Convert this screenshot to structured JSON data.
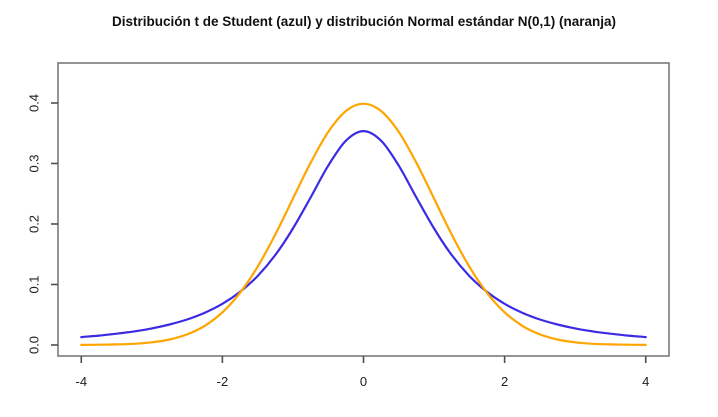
{
  "title": "Distribución t de Student (azul) y distribución Normal estándar N(0,1) (naranja)",
  "colors": {
    "t_curve": "#3c2be3",
    "normal_curve": "#ffa500",
    "plot_border": "#7a7a7a",
    "tick_mark": "#4f4f4f",
    "tick_label": "#1f1f1f",
    "background": "#ffffff"
  },
  "chart_data": {
    "type": "line",
    "title": "Distribución t de Student (azul) y distribución Normal estándar N(0,1) (naranja)",
    "xlabel": "",
    "ylabel": "",
    "grid": false,
    "legend_position": "none",
    "xlim": [
      -4.33,
      4.33
    ],
    "ylim": [
      -0.0182,
      0.4661
    ],
    "x_ticks": [
      -4,
      -2,
      0,
      2,
      4
    ],
    "x_tick_labels": [
      "-4",
      "-2",
      "0",
      "2",
      "4"
    ],
    "y_ticks": [
      0.0,
      0.1,
      0.2,
      0.3,
      0.4
    ],
    "y_tick_labels": [
      "0.0",
      "0.1",
      "0.2",
      "0.3",
      "0.4"
    ],
    "x": [
      -4,
      -3.75,
      -3.5,
      -3.25,
      -3,
      -2.75,
      -2.5,
      -2.25,
      -2,
      -1.75,
      -1.5,
      -1.25,
      -1,
      -0.75,
      -0.5,
      -0.25,
      0,
      0.25,
      0.5,
      0.75,
      1,
      1.25,
      1.5,
      1.75,
      2,
      2.25,
      2.5,
      2.75,
      3,
      3.25,
      3.5,
      3.75,
      4
    ],
    "series": [
      {
        "name": "Distribución t de Student (azul)",
        "color": "#3c2be3",
        "values": [
          0.0131,
          0.0155,
          0.0186,
          0.0225,
          0.0274,
          0.0338,
          0.0422,
          0.0533,
          0.068,
          0.0878,
          0.1141,
          0.1487,
          0.1925,
          0.2438,
          0.2963,
          0.3376,
          0.3536,
          0.3376,
          0.2963,
          0.2438,
          0.1925,
          0.1487,
          0.1141,
          0.0878,
          0.068,
          0.0533,
          0.0422,
          0.0338,
          0.0274,
          0.0225,
          0.0186,
          0.0155,
          0.0131
        ]
      },
      {
        "name": "Distribución Normal estándar N(0,1) (naranja)",
        "color": "#ffa500",
        "values": [
          0.0001,
          0.0004,
          0.0009,
          0.002,
          0.0044,
          0.0091,
          0.0175,
          0.0317,
          0.054,
          0.0863,
          0.1295,
          0.1826,
          0.242,
          0.3011,
          0.3521,
          0.3867,
          0.3989,
          0.3867,
          0.3521,
          0.3011,
          0.242,
          0.1826,
          0.1295,
          0.0863,
          0.054,
          0.0317,
          0.0175,
          0.0091,
          0.0044,
          0.002,
          0.0009,
          0.0004,
          0.0001
        ]
      }
    ]
  }
}
